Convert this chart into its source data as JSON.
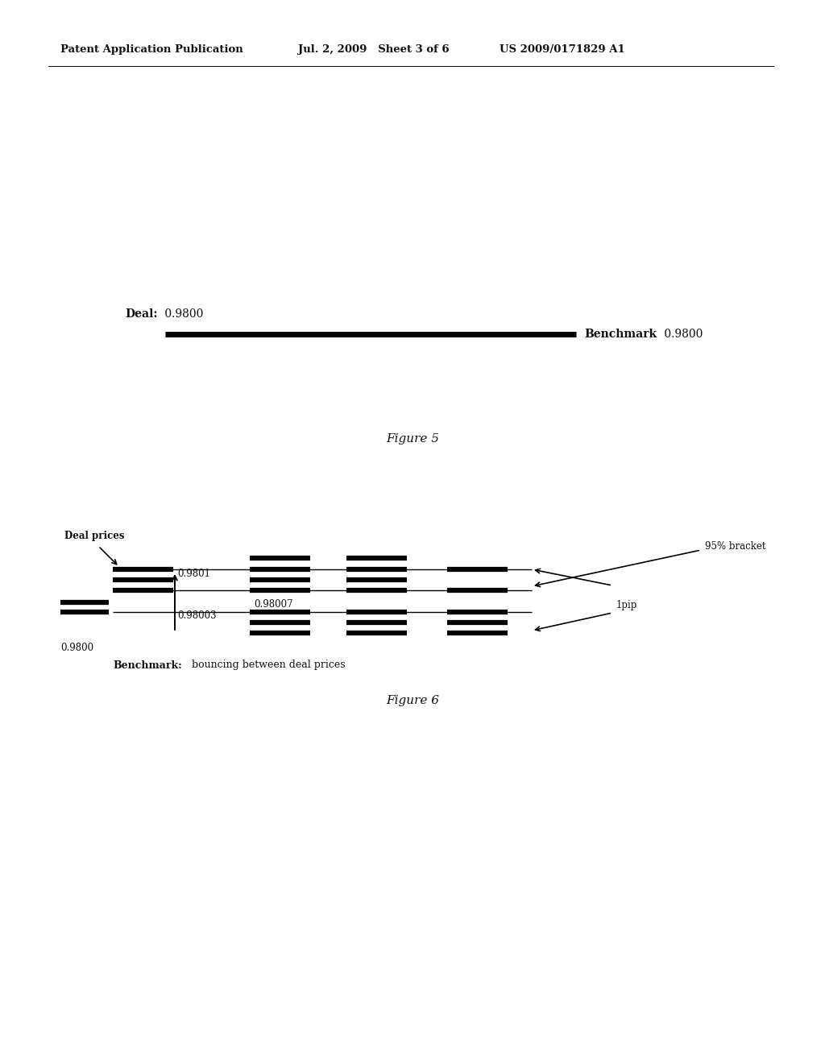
{
  "background_color": "#ffffff",
  "header_left": "Patent Application Publication",
  "header_mid": "Jul. 2, 2009   Sheet 3 of 6",
  "header_right": "US 2009/0171829 A1",
  "fig5_title": "Figure 5",
  "fig6_title": "Figure 6",
  "fig5_deal_label_bold": "Deal:",
  "fig5_deal_label_normal": " 0.9800",
  "fig5_benchmark_label_bold": "Benchmark",
  "fig5_benchmark_label_normal": " 0.9800",
  "fig6_deal_prices_label": "Deal prices",
  "fig6_benchmark_bold": "Benchmark:",
  "fig6_benchmark_normal": "  bouncing between deal prices",
  "label_0_9801": "0.9801",
  "label_0_98007": "0.98007",
  "label_0_98003": "0.98003",
  "label_0_9800": "0.9800",
  "label_95bracket": "95% bracket",
  "label_1pip": "1pip"
}
